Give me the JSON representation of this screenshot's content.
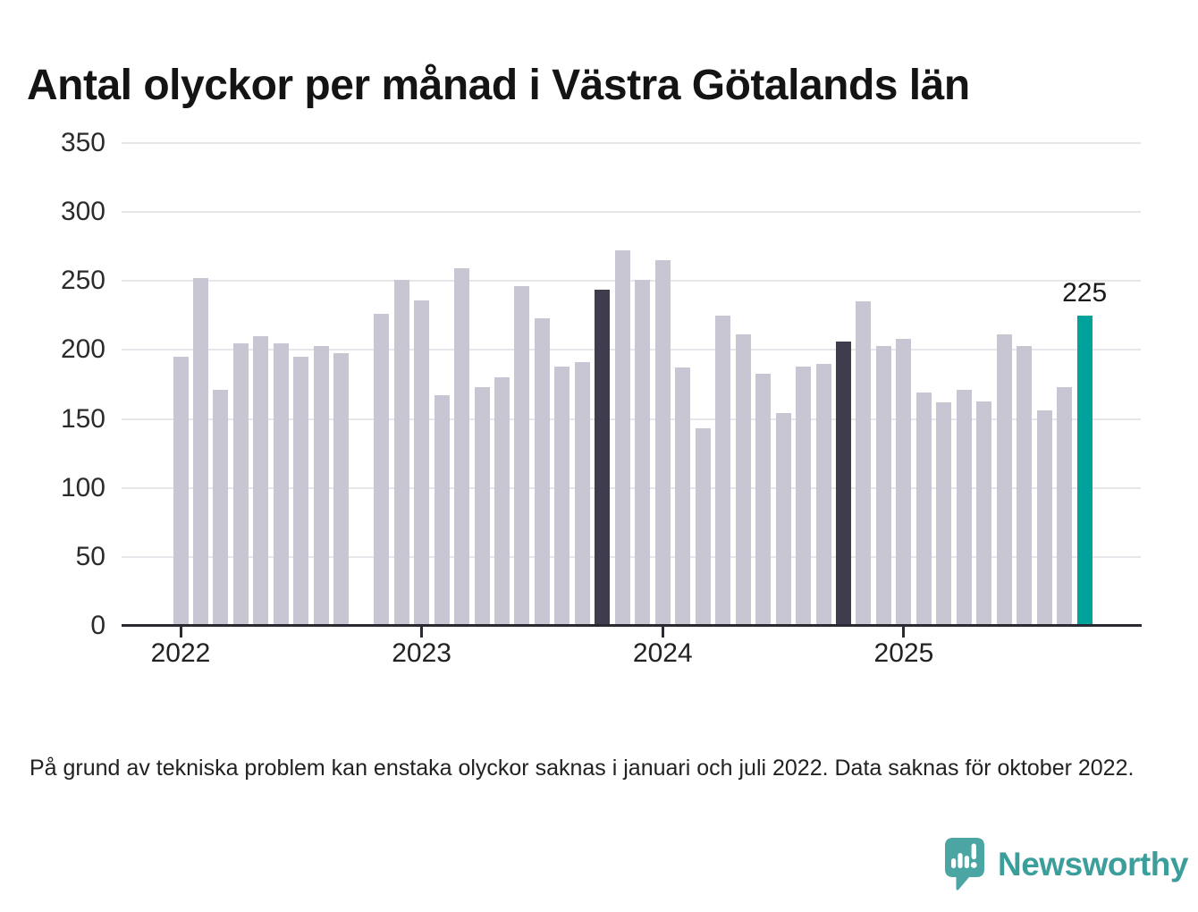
{
  "title": "Antal olyckor per månad i Västra Götalands län",
  "footnote": "På grund av tekniska problem kan enstaka olyckor saknas i januari och juli 2022. Data saknas för oktober 2022.",
  "logo": {
    "text": "Newsworthy"
  },
  "chart_data": {
    "type": "bar",
    "title": "Antal olyckor per månad i Västra Götalands län",
    "xlabel": "",
    "ylabel": "",
    "ylim": [
      0,
      350
    ],
    "yticks": [
      0,
      50,
      100,
      150,
      200,
      250,
      300,
      350
    ],
    "grid": true,
    "year_ticks": [
      {
        "label": "2022",
        "month_index": 0
      },
      {
        "label": "2023",
        "month_index": 12
      },
      {
        "label": "2024",
        "month_index": 24
      },
      {
        "label": "2025",
        "month_index": 36
      }
    ],
    "months": [
      "2022-01",
      "2022-02",
      "2022-03",
      "2022-04",
      "2022-05",
      "2022-06",
      "2022-07",
      "2022-08",
      "2022-09",
      "2022-10",
      "2022-11",
      "2022-12",
      "2023-01",
      "2023-02",
      "2023-03",
      "2023-04",
      "2023-05",
      "2023-06",
      "2023-07",
      "2023-08",
      "2023-09",
      "2023-10",
      "2023-11",
      "2023-12",
      "2024-01",
      "2024-02",
      "2024-03",
      "2024-04",
      "2024-05",
      "2024-06",
      "2024-07",
      "2024-08",
      "2024-09",
      "2024-10",
      "2024-11",
      "2024-12",
      "2025-01",
      "2025-02",
      "2025-03",
      "2025-04",
      "2025-05",
      "2025-06",
      "2025-07",
      "2025-08",
      "2025-09",
      "2025-10"
    ],
    "values": [
      195,
      252,
      171,
      205,
      210,
      205,
      195,
      203,
      198,
      null,
      226,
      251,
      236,
      167,
      259,
      173,
      180,
      246,
      223,
      188,
      191,
      244,
      272,
      251,
      265,
      187,
      143,
      225,
      211,
      183,
      154,
      188,
      190,
      206,
      235,
      203,
      208,
      169,
      162,
      171,
      163,
      211,
      203,
      156,
      173,
      225
    ],
    "missing_months": [
      "2022-10"
    ],
    "highlighted_month": {
      "month": "2025-10",
      "value": 225,
      "annotation": "225"
    },
    "comparison_months": [
      "2023-10",
      "2024-10"
    ],
    "colors": {
      "bar_default": "#c8c6d2",
      "bar_comparison": "#3f3d4d",
      "bar_highlight": "#00a39b",
      "gridline": "#e8e6ea",
      "axis": "#2b2a33",
      "logo_teal": "#3b9e9b",
      "logo_bubble": "#4ba5a2"
    }
  }
}
